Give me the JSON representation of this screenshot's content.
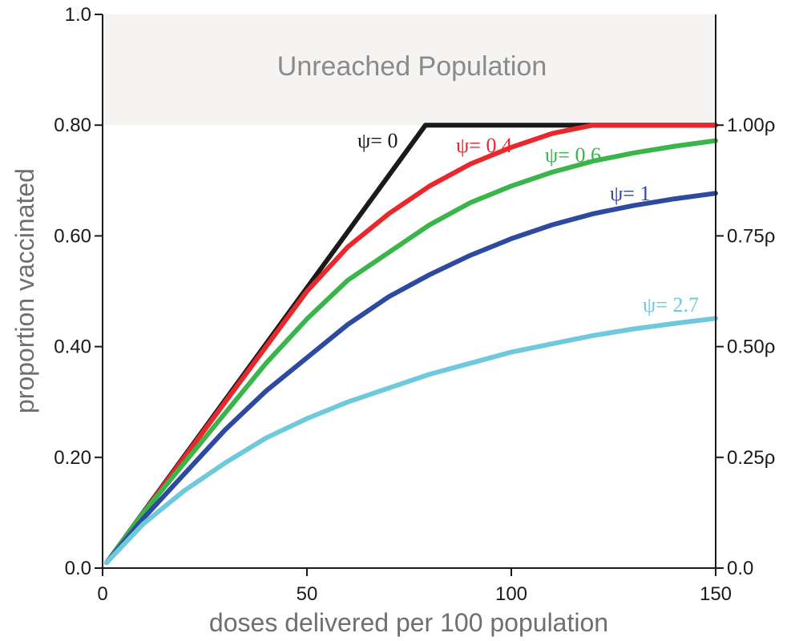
{
  "chart_data": {
    "type": "line",
    "title": "",
    "xlabel": "doses delivered per 100 population",
    "ylabel": "proportion vaccinated",
    "xlim": [
      0,
      150
    ],
    "ylim": [
      0,
      1.0
    ],
    "x_ticks": [
      {
        "value": 0,
        "label": "0"
      },
      {
        "value": 50,
        "label": "50"
      },
      {
        "value": 100,
        "label": "100"
      },
      {
        "value": 150,
        "label": "150"
      }
    ],
    "y_ticks": [
      {
        "value": 0.0,
        "label": "0.0"
      },
      {
        "value": 0.2,
        "label": "0.20"
      },
      {
        "value": 0.4,
        "label": "0.40"
      },
      {
        "value": 0.6,
        "label": "0.60"
      },
      {
        "value": 0.8,
        "label": "0.80"
      },
      {
        "value": 1.0,
        "label": "1.0"
      }
    ],
    "y2_ticks": [
      {
        "value": 0.0,
        "label": "0.0"
      },
      {
        "value": 0.2,
        "label": "0.25ρ"
      },
      {
        "value": 0.4,
        "label": "0.50ρ"
      },
      {
        "value": 0.6,
        "label": "0.75ρ"
      },
      {
        "value": 0.8,
        "label": "1.00ρ"
      }
    ],
    "shaded_region": {
      "label": "Unreached Population",
      "y_from": 0.8,
      "y_to": 1.0,
      "color": "#f5f4f2"
    },
    "grid": false,
    "series": [
      {
        "name": "ψ= 0",
        "color": "#1a1a1a",
        "points": [
          [
            1,
            0.01
          ],
          [
            79,
            0.8
          ],
          [
            150,
            0.8
          ]
        ]
      },
      {
        "name": "ψ= 0.4",
        "color": "#e8282c",
        "points": [
          [
            1,
            0.01
          ],
          [
            10,
            0.1
          ],
          [
            20,
            0.2
          ],
          [
            30,
            0.3
          ],
          [
            40,
            0.4
          ],
          [
            50,
            0.5
          ],
          [
            60,
            0.58
          ],
          [
            70,
            0.64
          ],
          [
            80,
            0.69
          ],
          [
            90,
            0.73
          ],
          [
            100,
            0.76
          ],
          [
            110,
            0.785
          ],
          [
            120,
            0.8
          ],
          [
            125,
            0.8
          ],
          [
            150,
            0.8
          ]
        ]
      },
      {
        "name": "ψ= 0.6",
        "color": "#3ab54a",
        "points": [
          [
            1,
            0.01
          ],
          [
            10,
            0.1
          ],
          [
            20,
            0.19
          ],
          [
            30,
            0.28
          ],
          [
            40,
            0.37
          ],
          [
            50,
            0.45
          ],
          [
            60,
            0.52
          ],
          [
            70,
            0.57
          ],
          [
            80,
            0.62
          ],
          [
            90,
            0.66
          ],
          [
            100,
            0.69
          ],
          [
            110,
            0.715
          ],
          [
            120,
            0.735
          ],
          [
            130,
            0.75
          ],
          [
            140,
            0.762
          ],
          [
            150,
            0.772
          ]
        ]
      },
      {
        "name": "ψ= 1",
        "color": "#2e4aa0",
        "points": [
          [
            1,
            0.01
          ],
          [
            10,
            0.09
          ],
          [
            20,
            0.17
          ],
          [
            30,
            0.25
          ],
          [
            40,
            0.32
          ],
          [
            50,
            0.38
          ],
          [
            60,
            0.44
          ],
          [
            70,
            0.49
          ],
          [
            80,
            0.53
          ],
          [
            90,
            0.565
          ],
          [
            100,
            0.595
          ],
          [
            110,
            0.62
          ],
          [
            120,
            0.64
          ],
          [
            130,
            0.655
          ],
          [
            140,
            0.667
          ],
          [
            150,
            0.677
          ]
        ]
      },
      {
        "name": "ψ= 2.7",
        "color": "#6ec9dc",
        "points": [
          [
            1,
            0.01
          ],
          [
            10,
            0.08
          ],
          [
            20,
            0.14
          ],
          [
            30,
            0.19
          ],
          [
            40,
            0.235
          ],
          [
            50,
            0.27
          ],
          [
            60,
            0.3
          ],
          [
            70,
            0.325
          ],
          [
            80,
            0.35
          ],
          [
            90,
            0.37
          ],
          [
            100,
            0.39
          ],
          [
            110,
            0.405
          ],
          [
            120,
            0.42
          ],
          [
            130,
            0.432
          ],
          [
            140,
            0.442
          ],
          [
            150,
            0.451
          ]
        ]
      }
    ]
  }
}
